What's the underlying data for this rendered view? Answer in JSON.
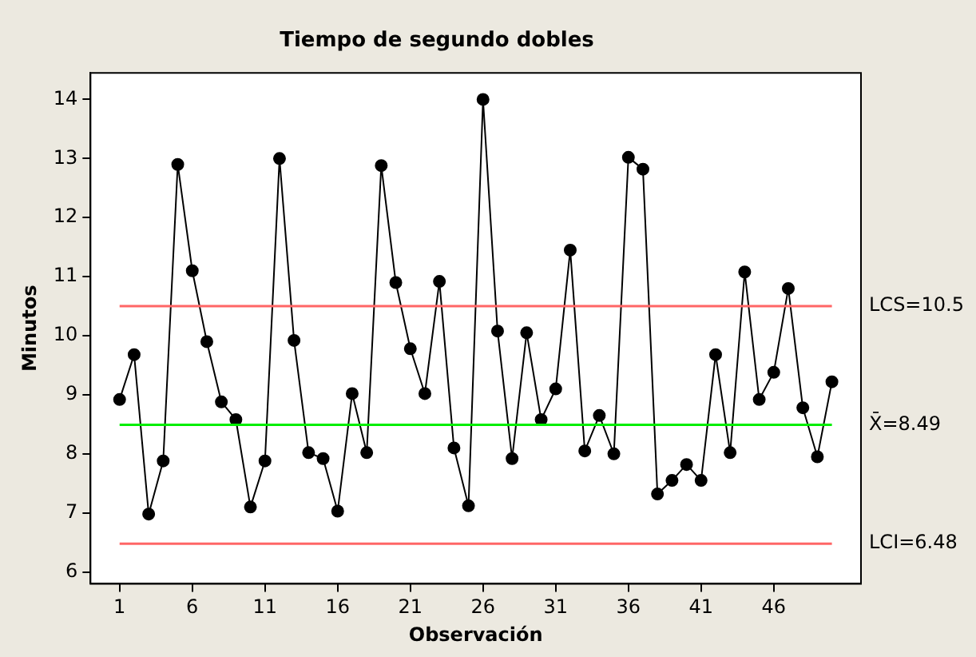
{
  "chart_data": {
    "type": "line",
    "title": "Tiempo de segundo dobles",
    "xlabel": "Observación",
    "ylabel": "Minutos",
    "x": [
      1,
      2,
      3,
      4,
      5,
      6,
      7,
      8,
      9,
      10,
      11,
      12,
      13,
      14,
      15,
      16,
      17,
      18,
      19,
      20,
      21,
      22,
      23,
      24,
      25,
      26,
      27,
      28,
      29,
      30,
      31,
      32,
      33,
      34,
      35,
      36,
      37,
      38,
      39,
      40,
      41,
      42,
      43,
      44,
      45,
      46,
      47,
      48,
      49,
      50
    ],
    "series": [
      {
        "color": "#000000",
        "values": [
          8.92,
          9.68,
          6.98,
          7.88,
          12.9,
          11.1,
          9.9,
          8.88,
          8.58,
          7.1,
          7.88,
          13.0,
          9.92,
          8.02,
          7.92,
          7.03,
          9.02,
          8.02,
          12.88,
          10.9,
          9.78,
          9.02,
          10.92,
          8.1,
          7.12,
          14.0,
          10.08,
          7.92,
          10.05,
          8.58,
          9.1,
          11.45,
          8.05,
          8.65,
          8.0,
          13.02,
          12.82,
          7.32,
          7.55,
          7.82,
          7.55,
          9.68,
          8.02,
          11.08,
          8.92,
          9.38,
          10.8,
          8.78,
          7.95,
          9.22
        ]
      }
    ],
    "xlim": [
      -1,
      52
    ],
    "xticks": [
      1,
      6,
      11,
      16,
      21,
      26,
      31,
      36,
      41,
      46
    ],
    "ylim": [
      5.8,
      14.45
    ],
    "yticks": [
      6,
      7,
      8,
      9,
      10,
      11,
      12,
      13,
      14
    ],
    "ref_lines": [
      {
        "axis": "y",
        "value": 10.5,
        "label": "LCS=10.5",
        "color": "#ff6666"
      },
      {
        "axis": "y",
        "value": 8.49,
        "label": "X̄=8.49",
        "color": "#00ee00"
      },
      {
        "axis": "y",
        "value": 6.48,
        "label": "LCI=6.48",
        "color": "#ff6666"
      }
    ],
    "grid": false,
    "legend": false,
    "marker": "circle",
    "line_style": "solid"
  }
}
